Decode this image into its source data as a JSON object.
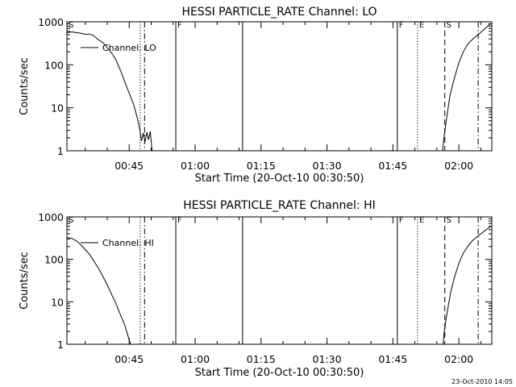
{
  "footer": {
    "timestamp": "23-Oct-2010 14:05"
  },
  "chart_data": [
    {
      "type": "line",
      "title": "HESSI PARTICLE_RATE Channel: LO",
      "xlabel": "Start Time (20-Oct-10 00:30:50)",
      "ylabel": "Counts/sec",
      "yscale": "log",
      "ylim": [
        1,
        1000
      ],
      "xlim_minutes": [
        30.83,
        127.5
      ],
      "x_ticks": [
        {
          "label": "00:45",
          "minutes": 45
        },
        {
          "label": "01:00",
          "minutes": 60
        },
        {
          "label": "01:15",
          "minutes": 75
        },
        {
          "label": "01:30",
          "minutes": 90
        },
        {
          "label": "01:45",
          "minutes": 105
        },
        {
          "label": "02:00",
          "minutes": 120
        }
      ],
      "y_ticks": [
        {
          "label": "1",
          "value": 1
        },
        {
          "label": "10",
          "value": 10
        },
        {
          "label": "100",
          "value": 100
        },
        {
          "label": "1000",
          "value": 1000
        }
      ],
      "legend": {
        "label": "Channel: LO",
        "position": "top-left"
      },
      "series": [
        {
          "segments": [
            [
              [
                30.83,
                560
              ],
              [
                32,
                580
              ],
              [
                33,
                560
              ],
              [
                34,
                540
              ],
              [
                35,
                510
              ],
              [
                36,
                520
              ],
              [
                37,
                470
              ],
              [
                38,
                380
              ],
              [
                39,
                330
              ],
              [
                40,
                250
              ],
              [
                41,
                190
              ],
              [
                42,
                130
              ],
              [
                43,
                75
              ],
              [
                44,
                40
              ],
              [
                45,
                22
              ],
              [
                46,
                12
              ],
              [
                46.8,
                6
              ],
              [
                47.3,
                3.6
              ],
              [
                47.8,
                1.7
              ],
              [
                48.2,
                2.6
              ],
              [
                48.6,
                1.6
              ],
              [
                49.0,
                2.7
              ],
              [
                49.4,
                1.8
              ],
              [
                49.8,
                2.8
              ],
              [
                50.2,
                1.0
              ]
            ],
            [
              [
                116.3,
                1.0
              ],
              [
                116.6,
                2
              ],
              [
                117,
                4
              ],
              [
                117.5,
                9
              ],
              [
                118,
                20
              ],
              [
                119,
                50
              ],
              [
                120,
                110
              ],
              [
                121,
                200
              ],
              [
                122,
                300
              ],
              [
                123,
                380
              ],
              [
                124,
                470
              ],
              [
                125,
                570
              ],
              [
                126,
                700
              ],
              [
                127.2,
                900
              ]
            ]
          ]
        }
      ],
      "markers": [
        {
          "label": "S",
          "minutes": 30.83,
          "style": "none"
        },
        {
          "label": "",
          "minutes": 47.5,
          "style": "dotted"
        },
        {
          "label": "",
          "minutes": 48.5,
          "style": "dashdot"
        },
        {
          "label": "F",
          "minutes": 55.6,
          "style": "solid"
        },
        {
          "label": "",
          "minutes": 70.8,
          "style": "solid"
        },
        {
          "label": "F",
          "minutes": 106.0,
          "style": "solid"
        },
        {
          "label": "E",
          "minutes": 110.6,
          "style": "dotted"
        },
        {
          "label": "S",
          "minutes": 116.8,
          "style": "dashed"
        },
        {
          "label": "",
          "minutes": 124.4,
          "style": "dashdot"
        }
      ]
    },
    {
      "type": "line",
      "title": "HESSI PARTICLE_RATE Channel: HI",
      "xlabel": "Start Time (20-Oct-10 00:30:50)",
      "ylabel": "Counts/sec",
      "yscale": "log",
      "ylim": [
        1,
        1000
      ],
      "xlim_minutes": [
        30.83,
        127.5
      ],
      "x_ticks": [
        {
          "label": "00:45",
          "minutes": 45
        },
        {
          "label": "01:00",
          "minutes": 60
        },
        {
          "label": "01:15",
          "minutes": 75
        },
        {
          "label": "01:30",
          "minutes": 90
        },
        {
          "label": "01:45",
          "minutes": 105
        },
        {
          "label": "02:00",
          "minutes": 120
        }
      ],
      "y_ticks": [
        {
          "label": "1",
          "value": 1
        },
        {
          "label": "10",
          "value": 10
        },
        {
          "label": "100",
          "value": 100
        },
        {
          "label": "1000",
          "value": 1000
        }
      ],
      "legend": {
        "label": "Channel: HI",
        "position": "top-left"
      },
      "series": [
        {
          "segments": [
            [
              [
                30.83,
                330
              ],
              [
                32,
                310
              ],
              [
                33,
                270
              ],
              [
                34,
                220
              ],
              [
                35,
                170
              ],
              [
                36,
                130
              ],
              [
                37,
                90
              ],
              [
                38,
                62
              ],
              [
                39,
                40
              ],
              [
                40,
                25
              ],
              [
                41,
                15
              ],
              [
                42,
                9
              ],
              [
                43,
                5
              ],
              [
                44,
                2.8
              ],
              [
                44.7,
                1.6
              ],
              [
                45.3,
                1.0
              ]
            ],
            [
              [
                116.4,
                1.0
              ],
              [
                116.7,
                2
              ],
              [
                117.1,
                4
              ],
              [
                117.6,
                8
              ],
              [
                118.2,
                18
              ],
              [
                119,
                38
              ],
              [
                120,
                80
              ],
              [
                121,
                140
              ],
              [
                122,
                200
              ],
              [
                123,
                270
              ],
              [
                124,
                330
              ],
              [
                125,
                400
              ],
              [
                126,
                480
              ],
              [
                127.2,
                590
              ]
            ]
          ]
        }
      ],
      "markers": [
        {
          "label": "S",
          "minutes": 30.83,
          "style": "none"
        },
        {
          "label": "",
          "minutes": 47.5,
          "style": "dotted"
        },
        {
          "label": "",
          "minutes": 48.5,
          "style": "dashdot"
        },
        {
          "label": "F",
          "minutes": 55.6,
          "style": "solid"
        },
        {
          "label": "",
          "minutes": 70.8,
          "style": "solid"
        },
        {
          "label": "F",
          "minutes": 106.0,
          "style": "solid"
        },
        {
          "label": "E",
          "minutes": 110.6,
          "style": "dotted"
        },
        {
          "label": "S",
          "minutes": 116.8,
          "style": "dashed"
        },
        {
          "label": "",
          "minutes": 124.4,
          "style": "dashdot"
        }
      ]
    }
  ]
}
